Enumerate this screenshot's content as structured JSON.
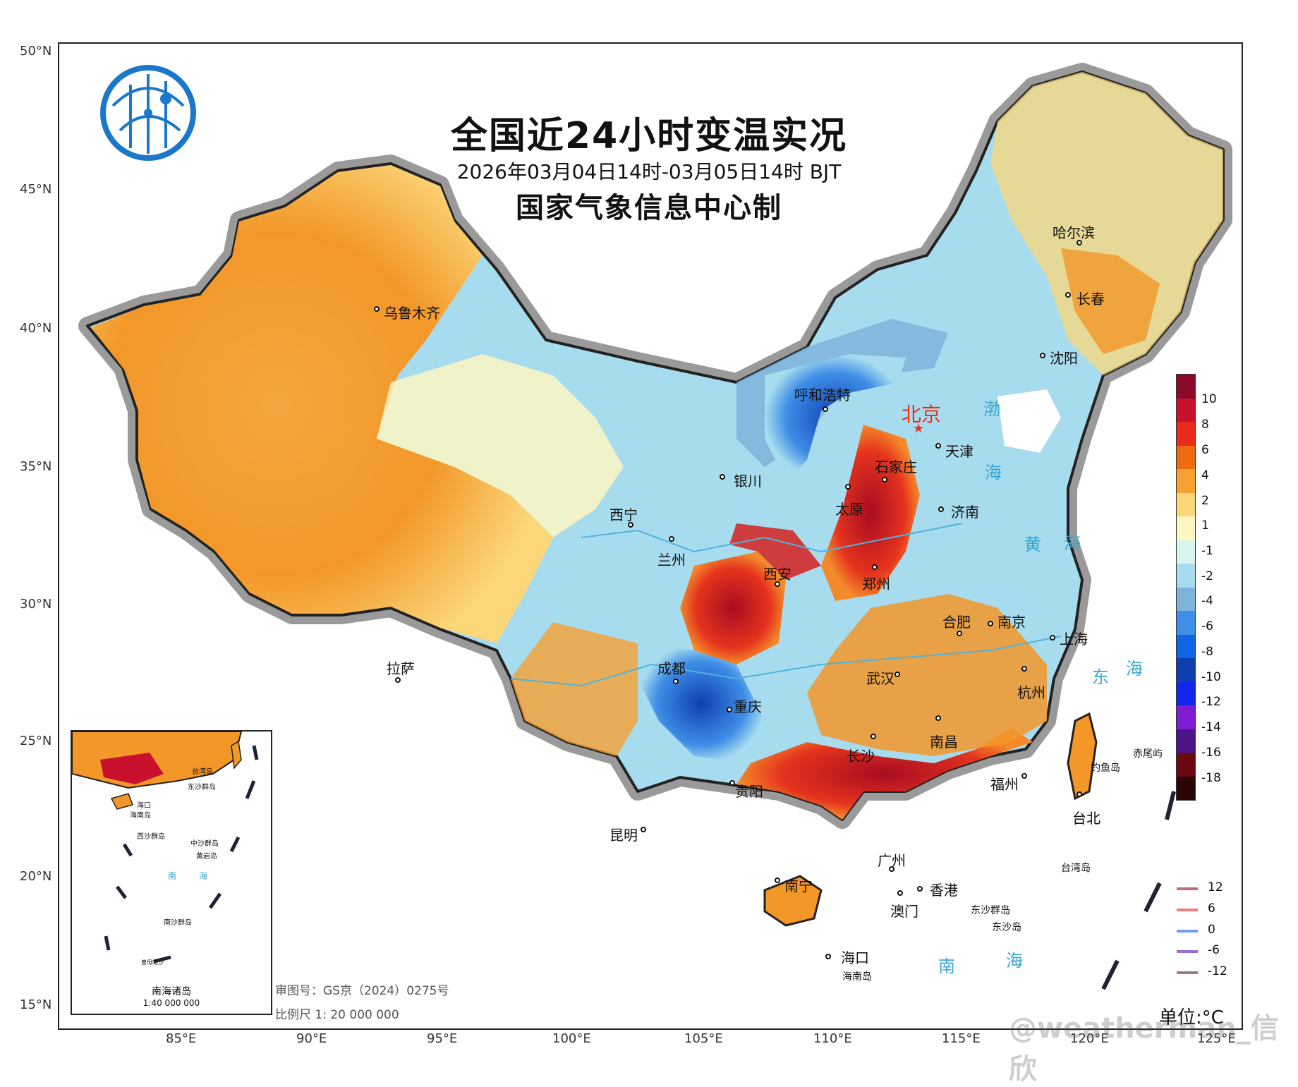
{
  "title": "全国近24小时变温实况",
  "subtitle": "2026年03月04日14时-03月05日14时 BJT",
  "maker": "国家气象信息中心制",
  "latitudes": [
    "50°N",
    "45°N",
    "40°N",
    "35°N",
    "30°N",
    "25°N",
    "20°N",
    "15°N"
  ],
  "longitudes": [
    "85°E",
    "90°E",
    "95°E",
    "100°E",
    "105°E",
    "110°E",
    "115°E",
    "120°E",
    "125°E"
  ],
  "capital": "北京",
  "cities": [
    "乌鲁木齐",
    "哈尔滨",
    "长春",
    "沈阳",
    "呼和浩特",
    "天津",
    "石家庄",
    "银川",
    "太原",
    "济南",
    "西宁",
    "兰州",
    "西安",
    "郑州",
    "合肥",
    "南京",
    "上海",
    "拉萨",
    "成都",
    "武汉",
    "杭州",
    "重庆",
    "长沙",
    "南昌",
    "贵阳",
    "福州",
    "台北",
    "昆明",
    "广州",
    "南宁",
    "香港",
    "澳门",
    "海口"
  ],
  "seas": [
    "渤",
    "海",
    "黄",
    "海",
    "东",
    "海",
    "南",
    "海"
  ],
  "islands": [
    "钓鱼岛",
    "赤尾屿",
    "台湾岛",
    "东沙群岛",
    "东沙岛",
    "海南岛"
  ],
  "legend": {
    "colors": [
      "#8b0a28",
      "#c9112e",
      "#ea2a1c",
      "#f06a10",
      "#f7a032",
      "#fbd77a",
      "#fdf6c2",
      "#d7f5ee",
      "#a7dcef",
      "#7fb3db",
      "#3f8ee7",
      "#1064e6",
      "#0e3fb1",
      "#1225ea",
      "#7f1cd6",
      "#4b1588",
      "#6a0a10",
      "#2a0705"
    ],
    "labels": [
      "10",
      "8",
      "6",
      "4",
      "2",
      "1",
      "-1",
      "-2",
      "-4",
      "-6",
      "-8",
      "-10",
      "-12",
      "-14",
      "-16",
      "-18"
    ]
  },
  "isolines": [
    {
      "label": "12",
      "color": "#c56b75"
    },
    {
      "label": "6",
      "color": "#ef7f7f"
    },
    {
      "label": "0",
      "color": "#6fa2ea"
    },
    {
      "label": "-6",
      "color": "#9b6fd1"
    },
    {
      "label": "-12",
      "color": "#9a7a80"
    }
  ],
  "unit": "单位:°C",
  "review": "审图号：GS京（2024）0275号",
  "scale": "比例尺 1: 20 000 000",
  "inset": {
    "title": "南海诸岛",
    "scale": "1:40 000 000",
    "labels": [
      "海口",
      "海南岛",
      "台湾岛",
      "东沙群岛",
      "西沙群岛",
      "中沙群岛",
      "黄岩岛",
      "南",
      "海",
      "南沙群岛",
      "曾母暗沙"
    ]
  },
  "watermark": "@weatherman_信欣"
}
